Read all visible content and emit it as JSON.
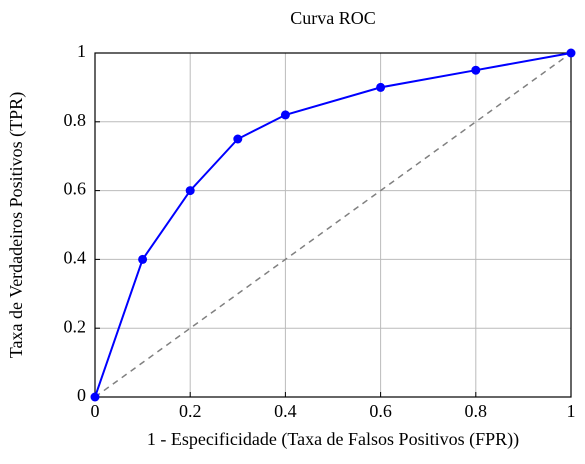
{
  "chart_data": {
    "type": "line",
    "title": "Curva ROC",
    "xlabel": "1 - Especificidade (Taxa de Falsos Positivos (FPR))",
    "ylabel": "Taxa de Verdadeiros Positivos (TPR)",
    "series": [
      {
        "color": "#0000ff",
        "marker": true,
        "dashed": false,
        "x": [
          0,
          0.1,
          0.2,
          0.3,
          0.4,
          0.6,
          0.8,
          1
        ],
        "values": [
          0,
          0.4,
          0.6,
          0.75,
          0.82,
          0.9,
          0.95,
          1
        ]
      },
      {
        "color": "#808080",
        "marker": false,
        "dashed": true,
        "x": [
          0,
          1
        ],
        "values": [
          0,
          1
        ]
      }
    ],
    "xlim": [
      0,
      1
    ],
    "xticks": [
      0,
      0.2,
      0.4,
      0.6,
      0.8,
      1
    ],
    "ylim": [
      0,
      1
    ],
    "yticks": [
      0,
      0.2,
      0.4,
      0.6,
      0.8,
      1
    ],
    "grid": true
  }
}
